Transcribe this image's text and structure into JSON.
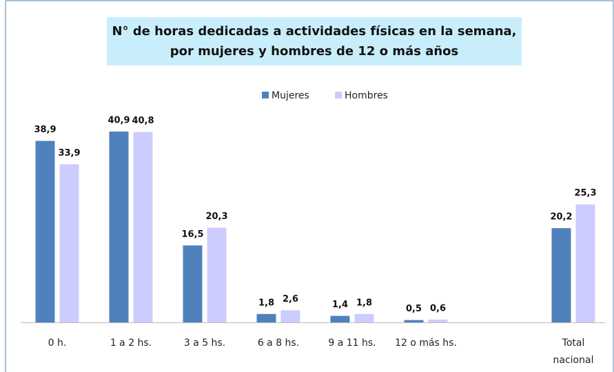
{
  "chart_data": {
    "type": "bar",
    "title": [
      "N° de horas dedicadas a actividades físicas en la semana,",
      "por mujeres y hombres de 12 o más años"
    ],
    "categories": [
      "0 h.",
      "1 a 2 hs.",
      "3 a 5 hs.",
      "6 a 8 hs.",
      "9 a 11 hs.",
      "12 o más hs.",
      null,
      "Total nacional"
    ],
    "series": [
      {
        "name": "Mujeres",
        "color": "#4f81bd",
        "values": [
          38.9,
          40.9,
          16.5,
          1.8,
          1.4,
          0.5,
          null,
          20.2
        ],
        "value_labels": [
          "38,9",
          "40,9",
          "16,5",
          "1,8",
          "1,4",
          "0,5",
          null,
          "20,2"
        ]
      },
      {
        "name": "Hombres",
        "color": "#ccccff",
        "values": [
          33.9,
          40.8,
          20.3,
          2.6,
          1.8,
          0.6,
          null,
          25.3
        ],
        "value_labels": [
          "33,9",
          "40,8",
          "20,3",
          "2,6",
          "1,8",
          "0,6",
          null,
          "25,3"
        ]
      }
    ],
    "legend": "top"
  }
}
